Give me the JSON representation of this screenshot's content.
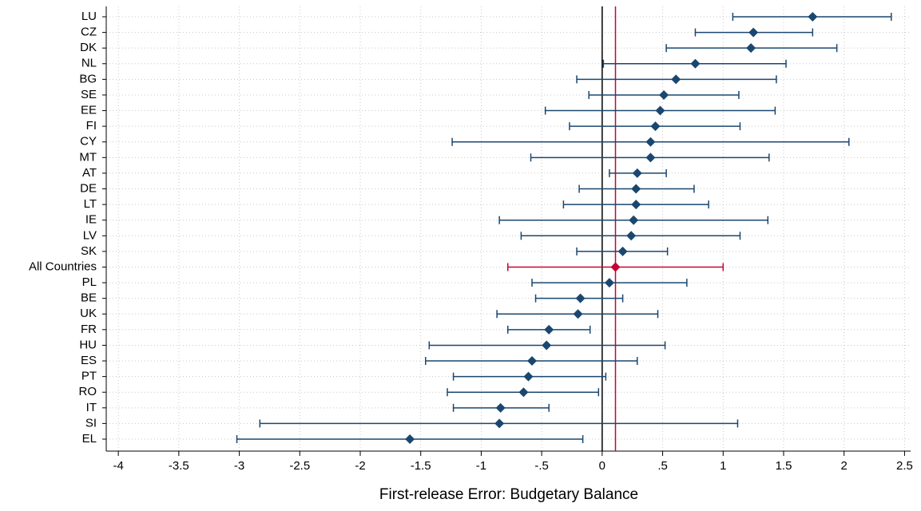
{
  "chart_data": {
    "type": "errorbar",
    "xlabel": "First-release Error: Budgetary Balance",
    "categories": [
      "LU",
      "CZ",
      "DK",
      "NL",
      "BG",
      "SE",
      "EE",
      "FI",
      "CY",
      "MT",
      "AT",
      "DE",
      "LT",
      "IE",
      "LV",
      "SK",
      "All Countries",
      "PL",
      "BE",
      "UK",
      "FR",
      "HU",
      "ES",
      "PT",
      "RO",
      "IT",
      "SI",
      "EL"
    ],
    "values": [
      1.74,
      1.25,
      1.23,
      0.77,
      0.61,
      0.51,
      0.48,
      0.44,
      0.4,
      0.4,
      0.29,
      0.28,
      0.28,
      0.26,
      0.24,
      0.17,
      0.11,
      0.06,
      -0.18,
      -0.2,
      -0.44,
      -0.46,
      -0.58,
      -0.61,
      -0.65,
      -0.84,
      -0.85,
      -1.59
    ],
    "low": [
      1.08,
      0.77,
      0.53,
      0.01,
      -0.21,
      -0.11,
      -0.47,
      -0.27,
      -1.24,
      -0.59,
      0.06,
      -0.19,
      -0.32,
      -0.85,
      -0.67,
      -0.21,
      -0.78,
      -0.58,
      -0.55,
      -0.87,
      -0.78,
      -1.43,
      -1.46,
      -1.23,
      -1.28,
      -1.23,
      -2.83,
      -3.02
    ],
    "high": [
      2.39,
      1.74,
      1.94,
      1.52,
      1.44,
      1.13,
      1.43,
      1.14,
      2.04,
      1.38,
      0.53,
      0.76,
      0.88,
      1.37,
      1.14,
      0.54,
      1.0,
      0.7,
      0.17,
      0.46,
      -0.1,
      0.52,
      0.29,
      0.03,
      -0.03,
      -0.44,
      1.12,
      -0.16
    ],
    "colors": [
      "#1a476f",
      "#1a476f",
      "#1a476f",
      "#1a476f",
      "#1a476f",
      "#1a476f",
      "#1a476f",
      "#1a476f",
      "#1a476f",
      "#1a476f",
      "#1a476f",
      "#1a476f",
      "#1a476f",
      "#1a476f",
      "#1a476f",
      "#1a476f",
      "#c10534",
      "#1a476f",
      "#1a476f",
      "#1a476f",
      "#1a476f",
      "#1a476f",
      "#1a476f",
      "#1a476f",
      "#1a476f",
      "#1a476f",
      "#1a476f",
      "#1a476f"
    ],
    "xlim": [
      -4.1,
      2.55
    ],
    "xticks": [
      -4,
      -3.5,
      -3,
      -2.5,
      -2,
      -1.5,
      -1,
      {
        "value": -0.5,
        "label": "-.5"
      },
      0,
      {
        "value": 0.5,
        "label": ".5"
      },
      1,
      1.5,
      2,
      2.5
    ],
    "grid": true
  }
}
